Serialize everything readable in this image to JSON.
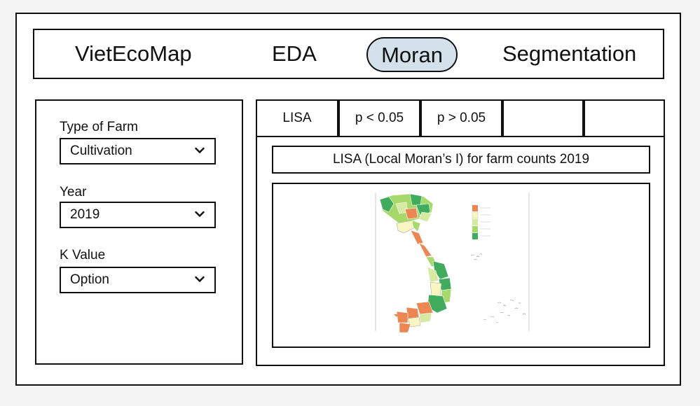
{
  "nav": {
    "brand": "VietEcoMap",
    "tabs": [
      {
        "label": "EDA",
        "active": false
      },
      {
        "label": "Moran",
        "active": true
      },
      {
        "label": "Segmentation",
        "active": false
      }
    ]
  },
  "filters": {
    "farm_type": {
      "label": "Type of Farm",
      "value": "Cultivation"
    },
    "year": {
      "label": "Year",
      "value": "2019"
    },
    "k_value": {
      "label": "K Value",
      "value": "Option"
    }
  },
  "result_tabs": [
    "LISA",
    "p < 0.05",
    "p > 0.05",
    "",
    ""
  ],
  "map": {
    "title": "LISA (Local Moran’s I) for farm counts 2019",
    "legend_colors": [
      "#ec8754",
      "#f9f6c2",
      "#d6eaa1",
      "#a6d96a",
      "#41ac5d"
    ],
    "colors": {
      "high_high": "#ec8754",
      "not_significant": "#f9f6c2",
      "light": "#d6eaa1",
      "mid": "#a6d96a",
      "low_low": "#41ac5d"
    }
  }
}
